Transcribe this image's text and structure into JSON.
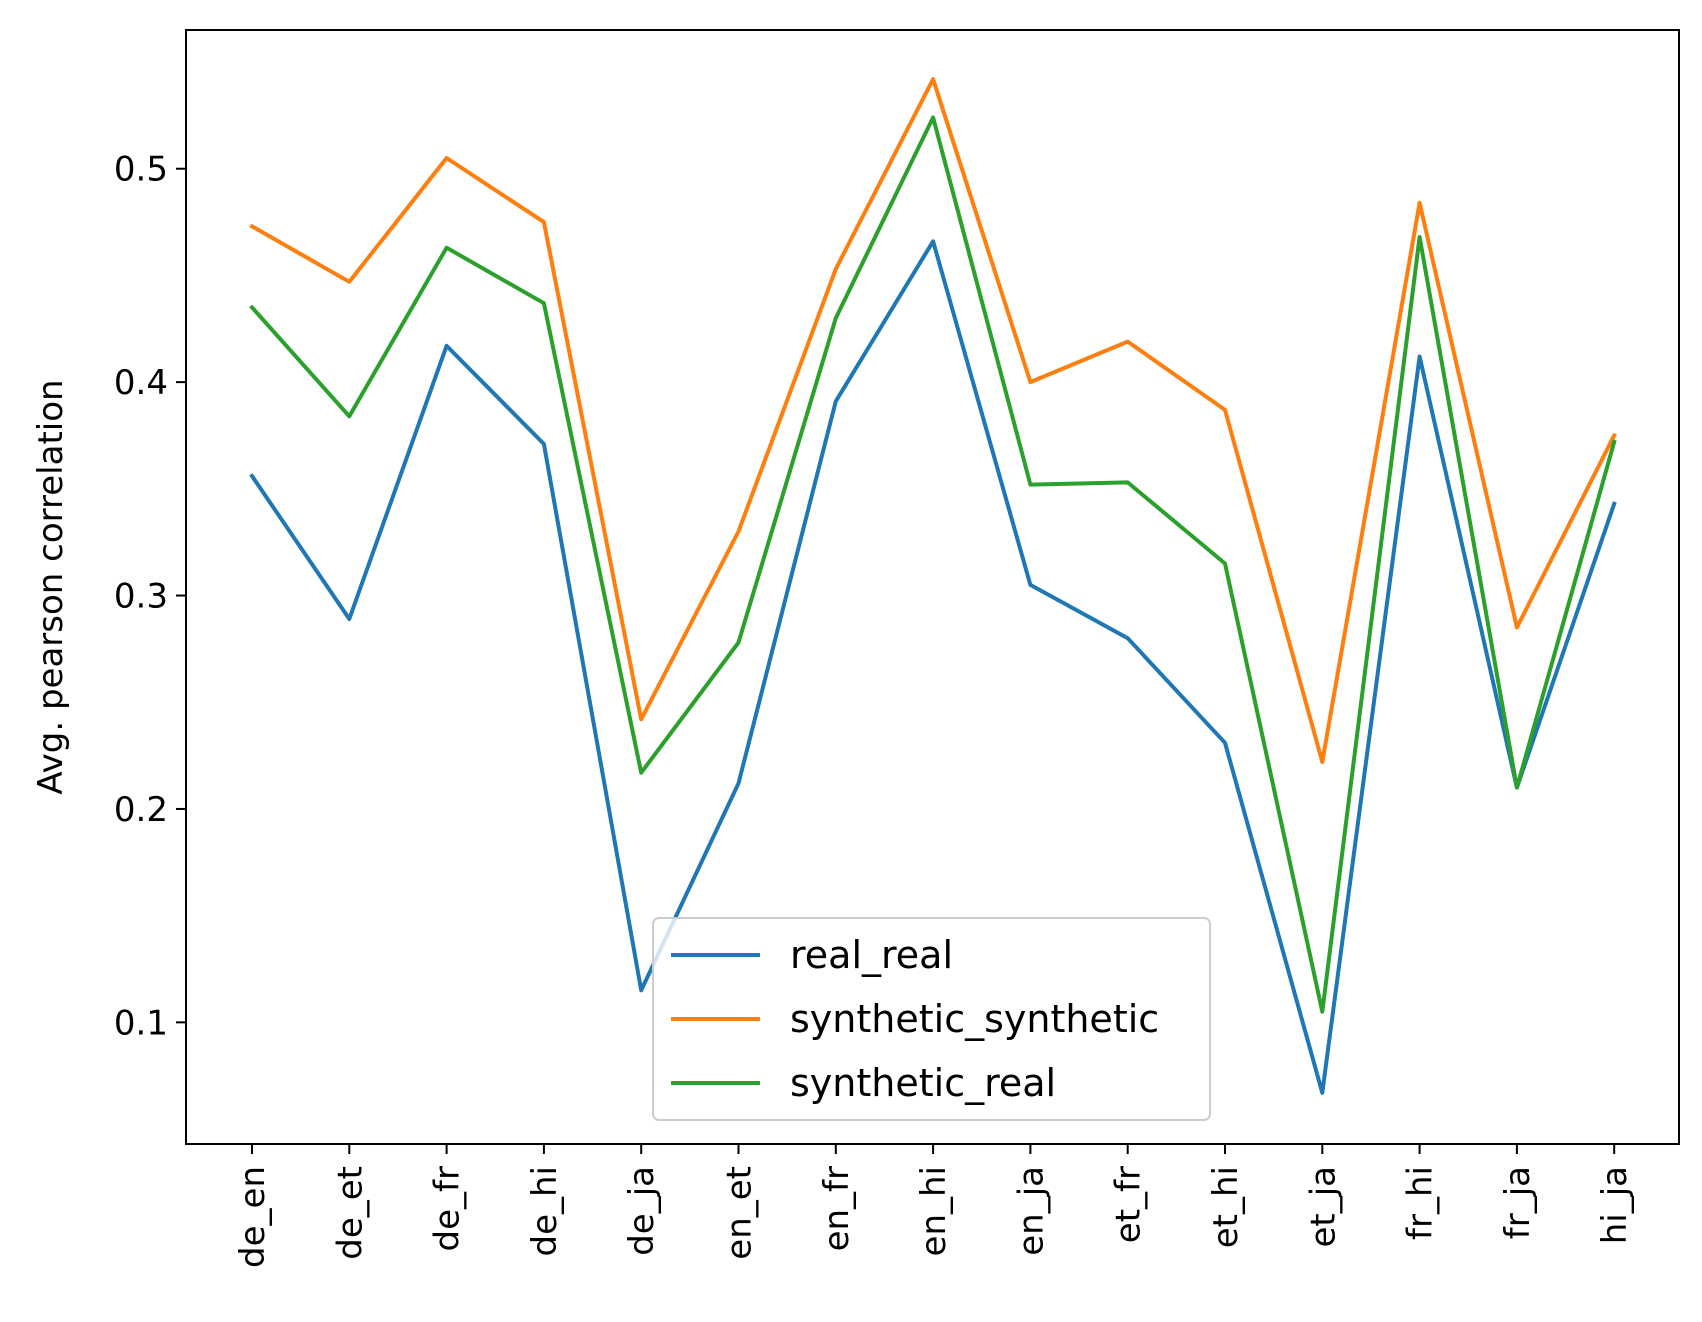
{
  "chart_data": {
    "type": "line",
    "title": "",
    "xlabel": "",
    "ylabel": "Avg. pearson correlation",
    "categories": [
      "de_en",
      "de_et",
      "de_fr",
      "de_hi",
      "de_ja",
      "en_et",
      "en_fr",
      "en_hi",
      "en_ja",
      "et_fr",
      "et_hi",
      "et_ja",
      "fr_hi",
      "fr_ja",
      "hi_ja"
    ],
    "ylim": [
      0.043,
      0.565
    ],
    "yticks": [
      0.1,
      0.2,
      0.3,
      0.4,
      0.5
    ],
    "ytick_labels": [
      "0.1",
      "0.2",
      "0.3",
      "0.4",
      "0.5"
    ],
    "grid": false,
    "legend_position": "lower-center",
    "series": [
      {
        "name": "real_real",
        "color": "#1f77b4",
        "values": [
          0.356,
          0.289,
          0.417,
          0.371,
          0.115,
          0.212,
          0.391,
          0.466,
          0.305,
          0.28,
          0.231,
          0.067,
          0.412,
          0.21,
          0.343
        ]
      },
      {
        "name": "synthetic_synthetic",
        "color": "#ff7f0e",
        "values": [
          0.473,
          0.447,
          0.505,
          0.475,
          0.242,
          0.33,
          0.453,
          0.542,
          0.4,
          0.419,
          0.387,
          0.222,
          0.484,
          0.285,
          0.375
        ]
      },
      {
        "name": "synthetic_real",
        "color": "#2ca02c",
        "values": [
          0.435,
          0.384,
          0.463,
          0.437,
          0.217,
          0.278,
          0.43,
          0.524,
          0.352,
          0.353,
          0.315,
          0.105,
          0.468,
          0.21,
          0.372
        ]
      }
    ]
  }
}
